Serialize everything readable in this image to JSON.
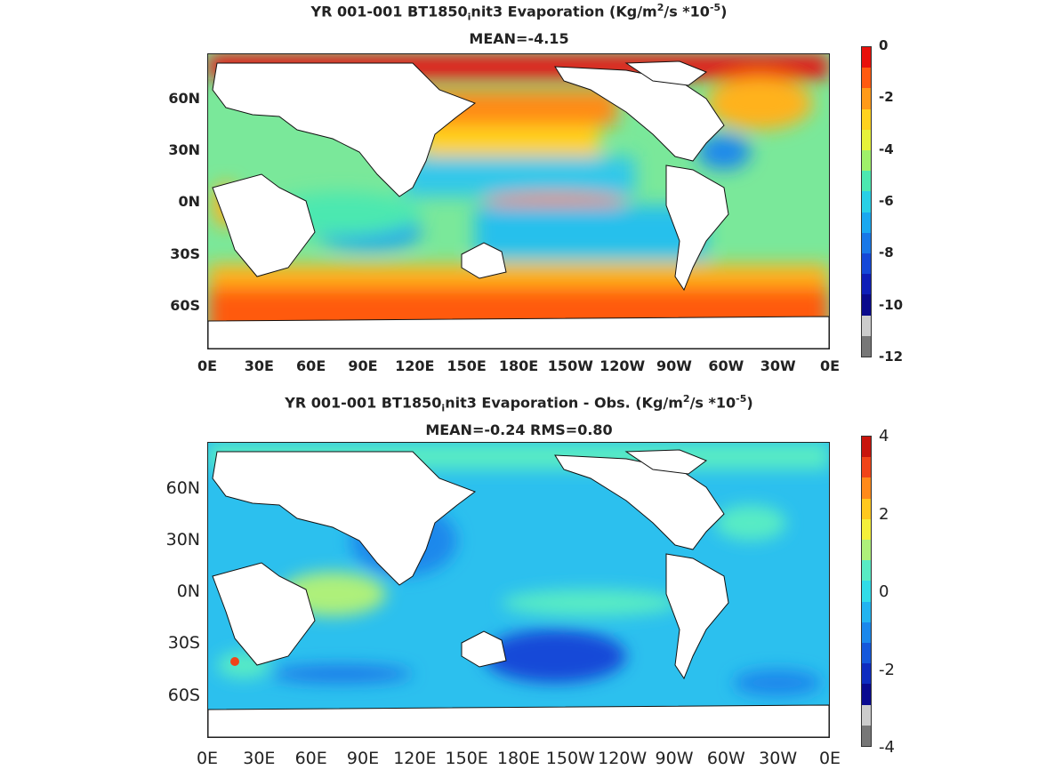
{
  "panels": [
    {
      "title_line1_pre": "YR 001-001 BT1850",
      "title_line1_sub": "i",
      "title_line1_mid": "nit3  Evaporation (Kg/m",
      "title_line1_sup1": "2",
      "title_line1_mid2": "/s *10",
      "title_line1_sup2": "-5",
      "title_line1_end": ")",
      "title_line2": "MEAN=-4.15",
      "colorbar_ticks": [
        "0",
        "-2",
        "-4",
        "-6",
        "-8",
        "-10",
        "-12"
      ],
      "colorbar_colors": [
        "#e8100a",
        "#ff5a10",
        "#ff9a18",
        "#ffd21e",
        "#e6f23a",
        "#9ff06a",
        "#4ce8b0",
        "#28d0e6",
        "#1aa8f0",
        "#1878e8",
        "#1448d8",
        "#0e1eb8",
        "#0a0a8c",
        "#cccccc",
        "#777777"
      ]
    },
    {
      "title_line1_pre": "YR 001-001 BT1850",
      "title_line1_sub": "i",
      "title_line1_mid": "nit3 Evaporation - Obs. (Kg/m",
      "title_line1_sup1": "2",
      "title_line1_mid2": "/s *10",
      "title_line1_sup2": "-5",
      "title_line1_end": ")",
      "title_line2": "MEAN=-0.24   RMS=0.80",
      "colorbar_ticks": [
        "4",
        "2",
        "0",
        "-2",
        "-4"
      ],
      "colorbar_colors": [
        "#c8140c",
        "#f04418",
        "#ff8a1a",
        "#ffc81e",
        "#f4f03a",
        "#aef07a",
        "#58ecc4",
        "#30dce8",
        "#22b4f0",
        "#1a88ec",
        "#1458dc",
        "#0e2cc0",
        "#0a0a90",
        "#cccccc",
        "#777777"
      ]
    }
  ],
  "chart_data": [
    {
      "type": "heatmap",
      "title": "YR 001-001 BT1850_init3  Evaporation (Kg/m^2/s *10^-5)",
      "subtitle": "MEAN=-4.15",
      "x_ticks": [
        "0E",
        "30E",
        "60E",
        "90E",
        "120E",
        "150E",
        "180E",
        "150W",
        "120W",
        "90W",
        "60W",
        "30W",
        "0E"
      ],
      "y_ticks": [
        "60N",
        "30N",
        "0N",
        "30S",
        "60S"
      ],
      "colorbar_range": [
        -12,
        0
      ],
      "colorbar_ticks": [
        0,
        -2,
        -4,
        -6,
        -8,
        -10,
        -12
      ],
      "mean": -4.15
    },
    {
      "type": "heatmap",
      "title": "YR 001-001 BT1850_init3 Evaporation - Obs. (Kg/m^2/s *10^-5)",
      "subtitle": "MEAN=-0.24   RMS=0.80",
      "x_ticks": [
        "0E",
        "30E",
        "60E",
        "90E",
        "120E",
        "150E",
        "180E",
        "150W",
        "120W",
        "90W",
        "60W",
        "30W",
        "0E"
      ],
      "y_ticks": [
        "60N",
        "30N",
        "0N",
        "30S",
        "60S"
      ],
      "colorbar_range": [
        -4,
        4
      ],
      "colorbar_ticks": [
        4,
        2,
        0,
        -2,
        -4
      ],
      "mean": -0.24,
      "rms": 0.8
    }
  ]
}
